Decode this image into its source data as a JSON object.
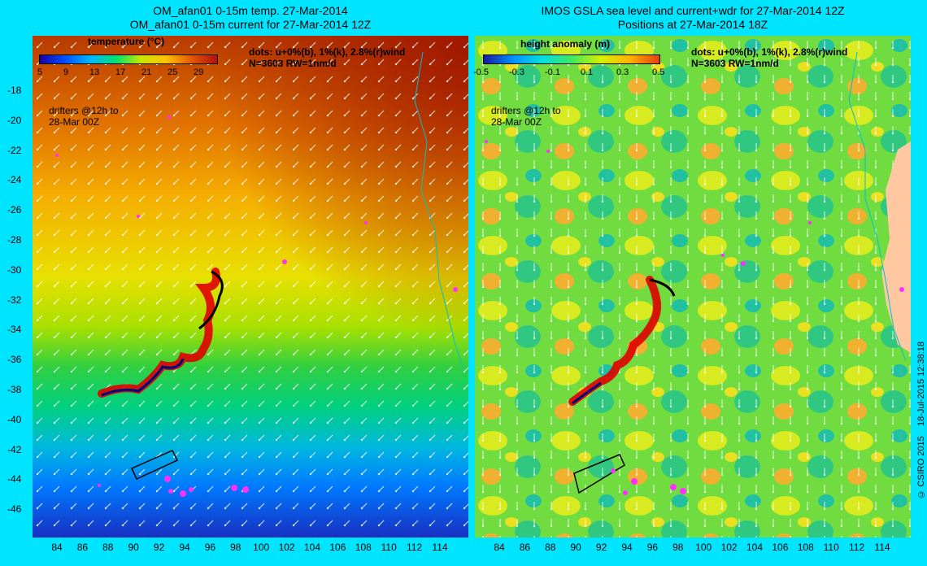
{
  "left_panel": {
    "title_line1": "OM_afan01 0-15m temp. 27-Mar-2014",
    "title_line2": "OM_afan01 0-15m current for 27-Mar-2014 12Z",
    "colorbar_label": "temperature (°C)",
    "colorbar_ticks": [
      "5",
      "9",
      "13",
      "17",
      "21",
      "25",
      "29"
    ],
    "colorbar_colors": [
      "#1b00a8",
      "#0050ff",
      "#00b8ff",
      "#00e070",
      "#c8e800",
      "#ffc000",
      "#e05800",
      "#b01010"
    ],
    "dots_note_line1": "dots: u+0%(b), 1%(k), 2.8%(r)wind",
    "dots_note_line2": "N=3603 RW=1nm/d",
    "drifters_line1": "drifters @12h to",
    "drifters_line2": "28-Mar 00Z"
  },
  "right_panel": {
    "title_line1": "IMOS GSLA sea level and current+wdr for 27-Mar-2014 12Z",
    "title_line2": "Positions at 27-Mar-2014 18Z",
    "colorbar_label": "height anomaly  (m)",
    "colorbar_ticks": [
      "-0.5",
      "-0.3",
      "-0.1",
      "0.1",
      "0.3",
      "0.5"
    ],
    "colorbar_colors": [
      "#1a1aa0",
      "#0090ff",
      "#00e0e0",
      "#40e860",
      "#d8f000",
      "#ffb000",
      "#e04010"
    ],
    "dots_note_line1": "dots: u+0%(b), 1%(k), 2.8%(r)wind",
    "dots_note_line2": "N=3603 RW=1nm/d",
    "drifters_line1": "drifters @12h to",
    "drifters_line2": "28-Mar 00Z"
  },
  "axes": {
    "lat_ticks": [
      "-18",
      "-20",
      "-22",
      "-24",
      "-26",
      "-28",
      "-30",
      "-32",
      "-34",
      "-36",
      "-38",
      "-40",
      "-42",
      "-44",
      "-46"
    ],
    "lon_ticks": [
      "84",
      "86",
      "88",
      "90",
      "92",
      "94",
      "96",
      "98",
      "100",
      "102",
      "104",
      "106",
      "108",
      "110",
      "112",
      "114"
    ]
  },
  "credit": "© CSIRO 2015    18-Jul-2015 12:38:18",
  "colors": {
    "background": "#00e5ff",
    "land": "#ffc8a0",
    "coast": "#00c0d0",
    "drifter": "#ff30ff",
    "search_box": "#000000"
  }
}
